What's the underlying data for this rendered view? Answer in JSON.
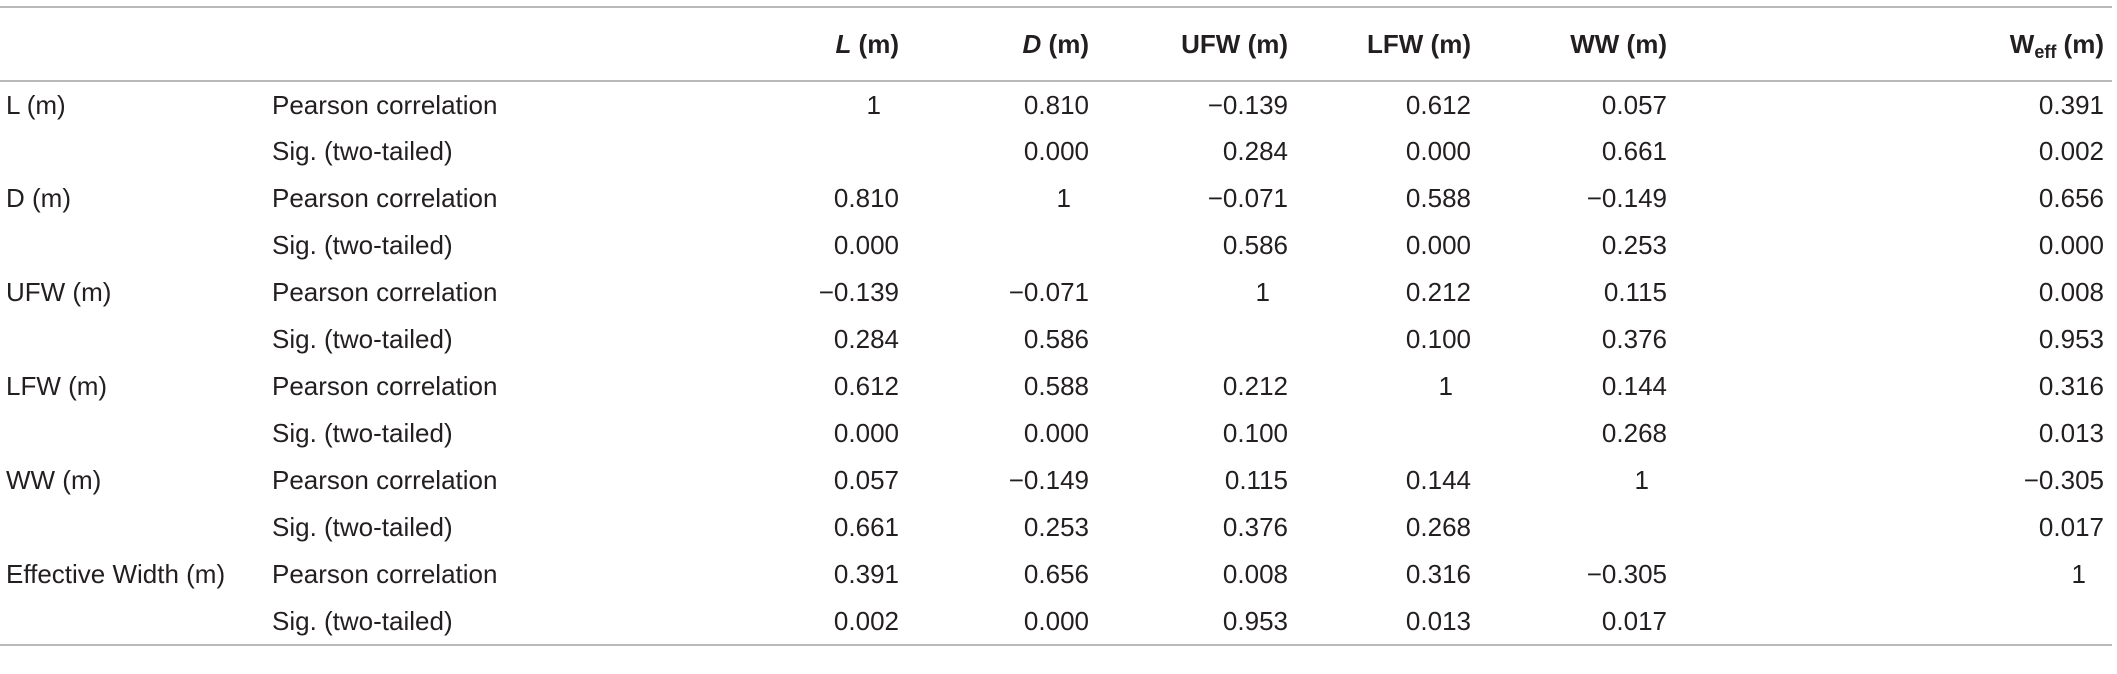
{
  "columns": [
    {
      "label": "L",
      "unit": " (m)",
      "italic": true
    },
    {
      "label": "D",
      "unit": " (m)",
      "italic": true
    },
    {
      "label": "UFW (m)"
    },
    {
      "label": "LFW (m)"
    },
    {
      "label": "WW (m)"
    },
    {
      "label": "W",
      "sub": "eff",
      "unit": " (m)"
    }
  ],
  "rows": [
    {
      "variable": "L (m)",
      "stat": "Pearson correlation",
      "values": [
        "1",
        "0.810",
        "−0.139",
        "0.612",
        "0.057",
        "0.391"
      ]
    },
    {
      "variable": "",
      "stat": "Sig. (two-tailed)",
      "values": [
        "",
        "0.000",
        "0.284",
        "0.000",
        "0.661",
        "0.002"
      ]
    },
    {
      "variable": "D (m)",
      "stat": "Pearson correlation",
      "values": [
        "0.810",
        "1",
        "−0.071",
        "0.588",
        "−0.149",
        "0.656"
      ]
    },
    {
      "variable": "",
      "stat": "Sig. (two-tailed)",
      "values": [
        "0.000",
        "",
        "0.586",
        "0.000",
        "0.253",
        "0.000"
      ]
    },
    {
      "variable": "UFW (m)",
      "stat": "Pearson correlation",
      "values": [
        "−0.139",
        "−0.071",
        "1",
        "0.212",
        "0.115",
        "0.008"
      ]
    },
    {
      "variable": "",
      "stat": "Sig. (two-tailed)",
      "values": [
        "0.284",
        "0.586",
        "",
        "0.100",
        "0.376",
        "0.953"
      ]
    },
    {
      "variable": "LFW (m)",
      "stat": "Pearson correlation",
      "values": [
        "0.612",
        "0.588",
        "0.212",
        "1",
        "0.144",
        "0.316"
      ]
    },
    {
      "variable": "",
      "stat": "Sig. (two-tailed)",
      "values": [
        "0.000",
        "0.000",
        "0.100",
        "",
        "0.268",
        "0.013"
      ]
    },
    {
      "variable": "WW (m)",
      "stat": "Pearson correlation",
      "values": [
        "0.057",
        "−0.149",
        "0.115",
        "0.144",
        "1",
        "−0.305"
      ]
    },
    {
      "variable": "",
      "stat": "Sig. (two-tailed)",
      "values": [
        "0.661",
        "0.253",
        "0.376",
        "0.268",
        "",
        "0.017"
      ]
    },
    {
      "variable": "Effective Width (m)",
      "stat": "Pearson correlation",
      "values": [
        "0.391",
        "0.656",
        "0.008",
        "0.316",
        "−0.305",
        "1"
      ]
    },
    {
      "variable": "",
      "stat": "Sig. (two-tailed)",
      "values": [
        "0.002",
        "0.000",
        "0.953",
        "0.013",
        "0.017",
        ""
      ]
    }
  ]
}
